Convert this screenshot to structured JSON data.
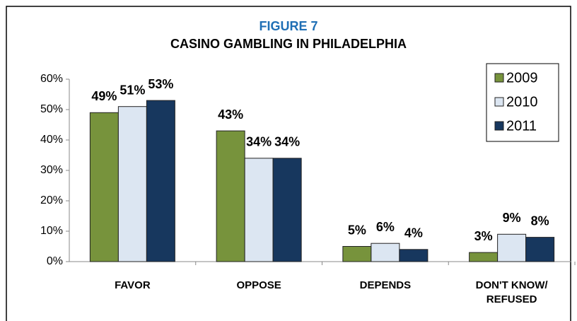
{
  "chart_data": {
    "type": "bar",
    "title": "FIGURE 7",
    "subtitle": "CASINO GAMBLING IN PHILADELPHIA",
    "categories": [
      "FAVOR",
      "OPPOSE",
      "DEPENDS",
      "DON'T KNOW/ REFUSED"
    ],
    "series": [
      {
        "name": "2009",
        "color": "#77933c",
        "values": [
          49,
          43,
          5,
          3
        ],
        "value_labels": [
          "49%",
          "43%",
          "5%",
          "3%"
        ]
      },
      {
        "name": "2010",
        "color": "#dce6f2",
        "values": [
          51,
          34,
          6,
          9
        ],
        "value_labels": [
          "51%",
          "34%",
          "6%",
          "9%"
        ]
      },
      {
        "name": "2011",
        "color": "#17375e",
        "values": [
          53,
          34,
          4,
          8
        ],
        "value_labels": [
          "53%",
          "34%",
          "4%",
          "8%"
        ]
      }
    ],
    "ylim": [
      0,
      60
    ],
    "yticks": [
      {
        "value": 0,
        "label": "0%"
      },
      {
        "value": 10,
        "label": "10%"
      },
      {
        "value": 20,
        "label": "20%"
      },
      {
        "value": 30,
        "label": "30%"
      },
      {
        "value": 40,
        "label": "40%"
      },
      {
        "value": 50,
        "label": "50%"
      },
      {
        "value": 60,
        "label": "60%"
      }
    ],
    "legend": "top-right"
  }
}
